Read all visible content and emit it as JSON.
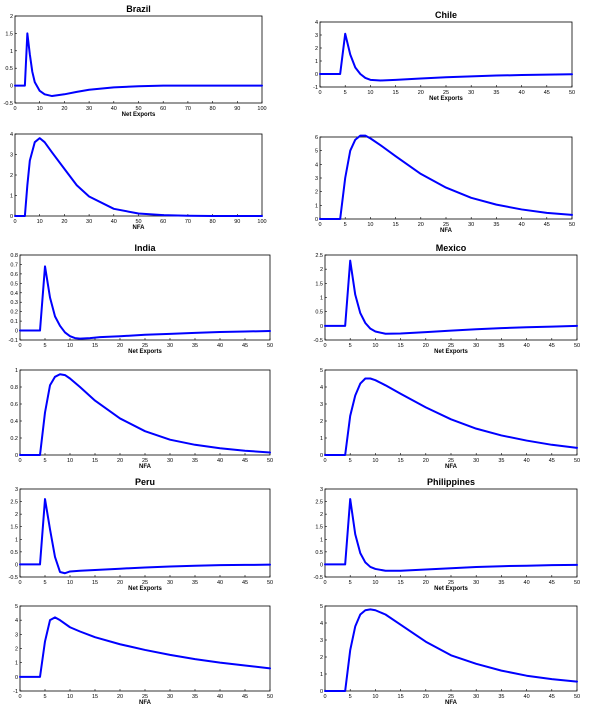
{
  "chart_data": [
    {
      "type": "line",
      "title": "Brazil",
      "xlabel": "Net Exports",
      "xlim": [
        0,
        100
      ],
      "ylim": [
        -0.5,
        2
      ],
      "xticks": [
        "0",
        "10",
        "20",
        "30",
        "40",
        "50",
        "60",
        "70",
        "80",
        "90",
        "100"
      ],
      "yticks": [
        "-0.5",
        "0",
        "0.5",
        "1",
        "1.5",
        "2"
      ],
      "series": [
        {
          "x": [
            0,
            4,
            5,
            6,
            7,
            8,
            10,
            12,
            15,
            20,
            25,
            30,
            40,
            50,
            60,
            70,
            80,
            90,
            100
          ],
          "y": [
            0,
            0,
            1.5,
            0.9,
            0.4,
            0.1,
            -0.15,
            -0.25,
            -0.3,
            -0.25,
            -0.18,
            -0.12,
            -0.05,
            -0.02,
            0,
            0,
            0,
            0,
            0
          ],
          "color": "#0000ff"
        }
      ]
    },
    {
      "type": "line",
      "title": "Chile",
      "xlabel": "Net Exports",
      "xlim": [
        0,
        50
      ],
      "ylim": [
        -1,
        4
      ],
      "xticks": [
        "0",
        "5",
        "10",
        "15",
        "20",
        "25",
        "30",
        "35",
        "40",
        "45",
        "50"
      ],
      "yticks": [
        "-1",
        "0",
        "1",
        "2",
        "3",
        "4"
      ],
      "series": [
        {
          "x": [
            0,
            4,
            5,
            6,
            7,
            8,
            9,
            10,
            12,
            15,
            20,
            25,
            30,
            35,
            40,
            45,
            50
          ],
          "y": [
            0,
            0,
            3.1,
            1.5,
            0.5,
            0,
            -0.3,
            -0.45,
            -0.5,
            -0.45,
            -0.35,
            -0.25,
            -0.18,
            -0.12,
            -0.08,
            -0.05,
            -0.02
          ],
          "color": "#0000ff"
        }
      ]
    },
    {
      "type": "line",
      "title": "",
      "xlabel": "NFA",
      "xlim": [
        0,
        100
      ],
      "ylim": [
        0,
        4
      ],
      "xticks": [
        "0",
        "10",
        "20",
        "30",
        "40",
        "50",
        "60",
        "70",
        "80",
        "90",
        "100"
      ],
      "yticks": [
        "0",
        "1",
        "2",
        "3",
        "4"
      ],
      "series": [
        {
          "x": [
            0,
            4,
            5,
            6,
            8,
            10,
            12,
            15,
            20,
            25,
            30,
            40,
            50,
            60,
            70,
            80,
            90,
            100
          ],
          "y": [
            0,
            0,
            1.5,
            2.7,
            3.6,
            3.8,
            3.6,
            3.1,
            2.3,
            1.5,
            0.95,
            0.35,
            0.12,
            0.04,
            0.01,
            0,
            0,
            0
          ],
          "color": "#0000ff"
        }
      ]
    },
    {
      "type": "line",
      "title": "",
      "xlabel": "NFA",
      "xlim": [
        0,
        50
      ],
      "ylim": [
        0,
        6
      ],
      "xticks": [
        "0",
        "5",
        "10",
        "15",
        "20",
        "25",
        "30",
        "35",
        "40",
        "45",
        "50"
      ],
      "yticks": [
        "0",
        "1",
        "2",
        "3",
        "4",
        "5",
        "6"
      ],
      "series": [
        {
          "x": [
            0,
            4,
            5,
            6,
            7,
            8,
            9,
            10,
            12,
            15,
            20,
            25,
            30,
            35,
            40,
            45,
            50
          ],
          "y": [
            0,
            0,
            3,
            5,
            5.8,
            6.1,
            6.1,
            5.9,
            5.4,
            4.6,
            3.3,
            2.3,
            1.55,
            1.05,
            0.7,
            0.45,
            0.3
          ],
          "color": "#0000ff"
        }
      ]
    },
    {
      "type": "line",
      "title": "India",
      "xlabel": "Net Exports",
      "xlim": [
        0,
        50
      ],
      "ylim": [
        -0.1,
        0.8
      ],
      "xticks": [
        "0",
        "5",
        "10",
        "15",
        "20",
        "25",
        "30",
        "35",
        "40",
        "45",
        "50"
      ],
      "yticks": [
        "-0.1",
        "0",
        "0.1",
        "0.2",
        "0.3",
        "0.4",
        "0.5",
        "0.6",
        "0.7",
        "0.8"
      ],
      "series": [
        {
          "x": [
            0,
            4,
            5,
            6,
            7,
            8,
            9,
            10,
            11,
            12,
            14,
            16,
            20,
            25,
            30,
            35,
            40,
            45,
            50
          ],
          "y": [
            0,
            0,
            0.68,
            0.35,
            0.15,
            0.05,
            -0.02,
            -0.06,
            -0.08,
            -0.085,
            -0.08,
            -0.07,
            -0.06,
            -0.045,
            -0.035,
            -0.025,
            -0.015,
            -0.01,
            -0.005
          ],
          "color": "#0000ff"
        }
      ]
    },
    {
      "type": "line",
      "title": "Mexico",
      "xlabel": "Net Exports",
      "xlim": [
        0,
        50
      ],
      "ylim": [
        -0.5,
        2.5
      ],
      "xticks": [
        "0",
        "5",
        "10",
        "15",
        "20",
        "25",
        "30",
        "35",
        "40",
        "45",
        "50"
      ],
      "yticks": [
        "-0.5",
        "0",
        "0.5",
        "1",
        "1.5",
        "2",
        "2.5"
      ],
      "series": [
        {
          "x": [
            0,
            4,
            5,
            6,
            7,
            8,
            9,
            10,
            12,
            15,
            20,
            25,
            30,
            35,
            40,
            45,
            50
          ],
          "y": [
            0,
            0,
            2.3,
            1.1,
            0.45,
            0.1,
            -0.1,
            -0.2,
            -0.28,
            -0.27,
            -0.22,
            -0.17,
            -0.12,
            -0.08,
            -0.05,
            -0.03,
            0
          ],
          "color": "#0000ff"
        }
      ]
    },
    {
      "type": "line",
      "title": "",
      "xlabel": "NFA",
      "xlim": [
        0,
        50
      ],
      "ylim": [
        0,
        1
      ],
      "xticks": [
        "0",
        "5",
        "10",
        "15",
        "20",
        "25",
        "30",
        "35",
        "40",
        "45",
        "50"
      ],
      "yticks": [
        "0",
        "0.2",
        "0.4",
        "0.6",
        "0.8",
        "1"
      ],
      "series": [
        {
          "x": [
            0,
            4,
            5,
            6,
            7,
            8,
            9,
            10,
            12,
            15,
            20,
            25,
            30,
            35,
            40,
            45,
            50
          ],
          "y": [
            0,
            0,
            0.5,
            0.82,
            0.92,
            0.95,
            0.94,
            0.9,
            0.8,
            0.64,
            0.43,
            0.28,
            0.18,
            0.12,
            0.08,
            0.05,
            0.03
          ],
          "color": "#0000ff"
        }
      ]
    },
    {
      "type": "line",
      "title": "",
      "xlabel": "NFA",
      "xlim": [
        0,
        50
      ],
      "ylim": [
        0,
        5
      ],
      "xticks": [
        "0",
        "5",
        "10",
        "15",
        "20",
        "25",
        "30",
        "35",
        "40",
        "45",
        "50"
      ],
      "yticks": [
        "0",
        "1",
        "2",
        "3",
        "4",
        "5"
      ],
      "series": [
        {
          "x": [
            0,
            4,
            5,
            6,
            7,
            8,
            9,
            10,
            12,
            15,
            20,
            25,
            30,
            35,
            40,
            45,
            50
          ],
          "y": [
            0,
            0,
            2.3,
            3.5,
            4.2,
            4.5,
            4.5,
            4.4,
            4.1,
            3.6,
            2.8,
            2.1,
            1.55,
            1.15,
            0.85,
            0.6,
            0.42
          ],
          "color": "#0000ff"
        }
      ]
    },
    {
      "type": "line",
      "title": "Peru",
      "xlabel": "Net Exports",
      "xlim": [
        0,
        50
      ],
      "ylim": [
        -0.5,
        3
      ],
      "xticks": [
        "0",
        "5",
        "10",
        "15",
        "20",
        "25",
        "30",
        "35",
        "40",
        "45",
        "50"
      ],
      "yticks": [
        "-0.5",
        "0",
        "0.5",
        "1",
        "1.5",
        "2",
        "2.5",
        "3"
      ],
      "series": [
        {
          "x": [
            0,
            4,
            5,
            6,
            7,
            8,
            9,
            10,
            12,
            15,
            20,
            25,
            30,
            35,
            40,
            45,
            50
          ],
          "y": [
            0,
            0,
            2.6,
            1.4,
            0.3,
            -0.3,
            -0.35,
            -0.28,
            -0.25,
            -0.22,
            -0.17,
            -0.12,
            -0.08,
            -0.05,
            -0.03,
            -0.02,
            -0.01
          ],
          "color": "#0000ff"
        }
      ]
    },
    {
      "type": "line",
      "title": "Philippines",
      "xlabel": "Net Exports",
      "xlim": [
        0,
        50
      ],
      "ylim": [
        -0.5,
        3
      ],
      "xticks": [
        "0",
        "5",
        "10",
        "15",
        "20",
        "25",
        "30",
        "35",
        "40",
        "45",
        "50"
      ],
      "yticks": [
        "-0.5",
        "0",
        "0.5",
        "1",
        "1.5",
        "2",
        "2.5",
        "3"
      ],
      "series": [
        {
          "x": [
            0,
            4,
            5,
            6,
            7,
            8,
            9,
            10,
            12,
            15,
            20,
            25,
            30,
            35,
            40,
            45,
            50
          ],
          "y": [
            0,
            0,
            2.6,
            1.2,
            0.45,
            0.08,
            -0.1,
            -0.18,
            -0.25,
            -0.25,
            -0.2,
            -0.15,
            -0.1,
            -0.07,
            -0.05,
            -0.03,
            -0.02
          ],
          "color": "#0000ff"
        }
      ]
    },
    {
      "type": "line",
      "title": "",
      "xlabel": "NFA",
      "xlim": [
        0,
        50
      ],
      "ylim": [
        -1,
        5
      ],
      "xticks": [
        "0",
        "5",
        "10",
        "15",
        "20",
        "25",
        "30",
        "35",
        "40",
        "45",
        "50"
      ],
      "yticks": [
        "-1",
        "0",
        "1",
        "2",
        "3",
        "4",
        "5"
      ],
      "series": [
        {
          "x": [
            0,
            4,
            5,
            6,
            7,
            8,
            10,
            12,
            15,
            20,
            25,
            30,
            35,
            40,
            45,
            50
          ],
          "y": [
            0,
            0,
            2.5,
            4.0,
            4.2,
            4.0,
            3.5,
            3.2,
            2.8,
            2.3,
            1.9,
            1.55,
            1.25,
            1.0,
            0.8,
            0.6
          ],
          "color": "#0000ff"
        }
      ]
    },
    {
      "type": "line",
      "title": "",
      "xlabel": "NFA",
      "xlim": [
        0,
        50
      ],
      "ylim": [
        0,
        5
      ],
      "xticks": [
        "0",
        "5",
        "10",
        "15",
        "20",
        "25",
        "30",
        "35",
        "40",
        "45",
        "50"
      ],
      "yticks": [
        "0",
        "1",
        "2",
        "3",
        "4",
        "5"
      ],
      "series": [
        {
          "x": [
            0,
            4,
            5,
            6,
            7,
            8,
            9,
            10,
            12,
            15,
            20,
            25,
            30,
            35,
            40,
            45,
            50
          ],
          "y": [
            0,
            0,
            2.4,
            3.8,
            4.5,
            4.75,
            4.8,
            4.75,
            4.5,
            3.9,
            2.9,
            2.1,
            1.6,
            1.2,
            0.9,
            0.7,
            0.55
          ],
          "color": "#0000ff"
        }
      ]
    }
  ]
}
